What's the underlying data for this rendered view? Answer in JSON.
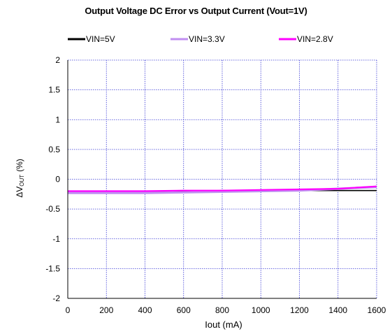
{
  "chart_data": {
    "type": "line",
    "title": "Output Voltage DC Error vs Output Current (Vout=1V)",
    "xlabel": "Iout (mA)",
    "ylabel": "ΔV",
    "ylabel_subscript": "OUT",
    "ylabel_unit": "(%)",
    "xlim": [
      0,
      1600
    ],
    "ylim": [
      -2,
      2
    ],
    "x_ticks": [
      0,
      200,
      400,
      600,
      800,
      1000,
      1200,
      1400,
      1600
    ],
    "y_ticks": [
      2,
      1.5,
      1,
      0.5,
      0,
      -0.5,
      -1,
      -1.5,
      -2
    ],
    "x_tick_labels": [
      "0",
      "200",
      "400",
      "600",
      "800",
      "1000",
      "1200",
      "1400",
      "1600"
    ],
    "y_tick_labels": [
      "2",
      "1.5",
      "1",
      "0.5",
      "0",
      "-0.5",
      "-1",
      "-1.5",
      "-2"
    ],
    "grid": true,
    "legend_position": "top",
    "series": [
      {
        "name": "VIN=5V",
        "color": "#000000",
        "x": [
          0,
          200,
          400,
          600,
          800,
          1000,
          1200,
          1400,
          1600
        ],
        "values": [
          -0.2,
          -0.2,
          -0.2,
          -0.2,
          -0.19,
          -0.19,
          -0.19,
          -0.19,
          -0.19
        ]
      },
      {
        "name": "VIN=3.3V",
        "color": "#c08ef0",
        "x": [
          0,
          200,
          400,
          600,
          800,
          1000,
          1200,
          1400,
          1600
        ],
        "values": [
          -0.23,
          -0.23,
          -0.23,
          -0.22,
          -0.21,
          -0.2,
          -0.19,
          -0.16,
          -0.13
        ]
      },
      {
        "name": "VIN=2.8V",
        "color": "#ff00ff",
        "x": [
          0,
          200,
          400,
          600,
          800,
          1000,
          1200,
          1400,
          1500,
          1600
        ],
        "values": [
          -0.2,
          -0.2,
          -0.2,
          -0.19,
          -0.19,
          -0.18,
          -0.17,
          -0.16,
          -0.14,
          -0.12
        ]
      }
    ]
  }
}
